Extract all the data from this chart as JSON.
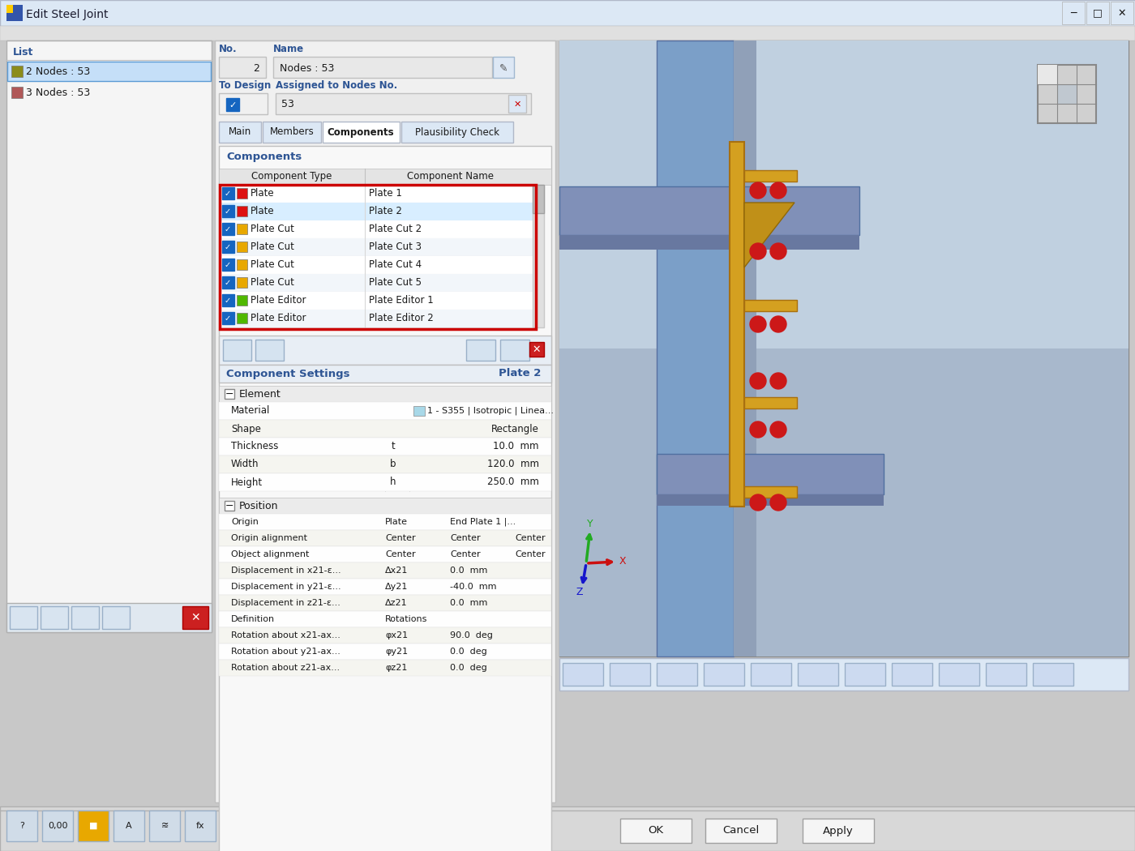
{
  "title": "Edit Steel Joint",
  "window_bg": "#e8e8e8",
  "titlebar_bg": "#dce6f0",
  "list_items": [
    {
      "color": "#8b8c1a",
      "text": "2 Nodes : 53",
      "selected": true
    },
    {
      "color": "#b05858",
      "text": "3 Nodes : 53",
      "selected": false
    }
  ],
  "no_value": "2",
  "name_value": "Nodes : 53",
  "assigned_nodes": "53",
  "tabs": [
    "Main",
    "Members",
    "Components",
    "Plausibility Check"
  ],
  "active_tab": "Components",
  "component_rows": [
    {
      "color": "#dd1111",
      "type": "Plate",
      "name": "Plate 1"
    },
    {
      "color": "#dd1111",
      "type": "Plate",
      "name": "Plate 2"
    },
    {
      "color": "#e8a800",
      "type": "Plate Cut",
      "name": "Plate Cut 2"
    },
    {
      "color": "#e8a800",
      "type": "Plate Cut",
      "name": "Plate Cut 3"
    },
    {
      "color": "#e8a800",
      "type": "Plate Cut",
      "name": "Plate Cut 4"
    },
    {
      "color": "#e8a800",
      "type": "Plate Cut",
      "name": "Plate Cut 5"
    },
    {
      "color": "#50b800",
      "type": "Plate Editor",
      "name": "Plate Editor 1"
    },
    {
      "color": "#50b800",
      "type": "Plate Editor",
      "name": "Plate Editor 2"
    }
  ],
  "settings_title": "Component Settings",
  "settings_selected": "Plate 2",
  "element_props": [
    {
      "label": "Material",
      "sym": "",
      "val": "1 - S355 | Isotropic | Linea...",
      "color_swatch": "#a8d8e8"
    },
    {
      "label": "Shape",
      "sym": "",
      "val": "Rectangle",
      "color_swatch": ""
    },
    {
      "label": "Thickness",
      "sym": "t",
      "val": "10.0  mm",
      "color_swatch": ""
    },
    {
      "label": "Width",
      "sym": "b",
      "val": "120.0  mm",
      "color_swatch": ""
    },
    {
      "label": "Height",
      "sym": "h",
      "val": "250.0  mm",
      "color_swatch": ""
    }
  ],
  "position_props": [
    {
      "label": "Origin",
      "c1": "Plate",
      "c2": "End Plate 1 |...",
      "c3": ""
    },
    {
      "label": "Origin alignment",
      "c1": "Center",
      "c2": "Center",
      "c3": "Center"
    },
    {
      "label": "Object alignment",
      "c1": "Center",
      "c2": "Center",
      "c3": "Center"
    },
    {
      "label": "Displacement in x21-ε...",
      "c1": "Δx21",
      "c2": "0.0  mm",
      "c3": ""
    },
    {
      "label": "Displacement in y21-ε...",
      "c1": "Δy21",
      "c2": "-40.0  mm",
      "c3": ""
    },
    {
      "label": "Displacement in z21-ε...",
      "c1": "Δz21",
      "c2": "0.0  mm",
      "c3": ""
    },
    {
      "label": "Definition",
      "c1": "Rotations",
      "c2": "",
      "c3": ""
    },
    {
      "label": "Rotation about x21-ax...",
      "c1": "φx21",
      "c2": "90.0  deg",
      "c3": ""
    },
    {
      "label": "Rotation about y21-ax...",
      "c1": "φy21",
      "c2": "0.0  deg",
      "c3": ""
    },
    {
      "label": "Rotation about z21-ax...",
      "c1": "φz21",
      "c2": "0.0  deg",
      "c3": ""
    }
  ],
  "header_color": "#2e5594",
  "checkbox_blue": "#1565c0",
  "red_border": "#cc0000"
}
